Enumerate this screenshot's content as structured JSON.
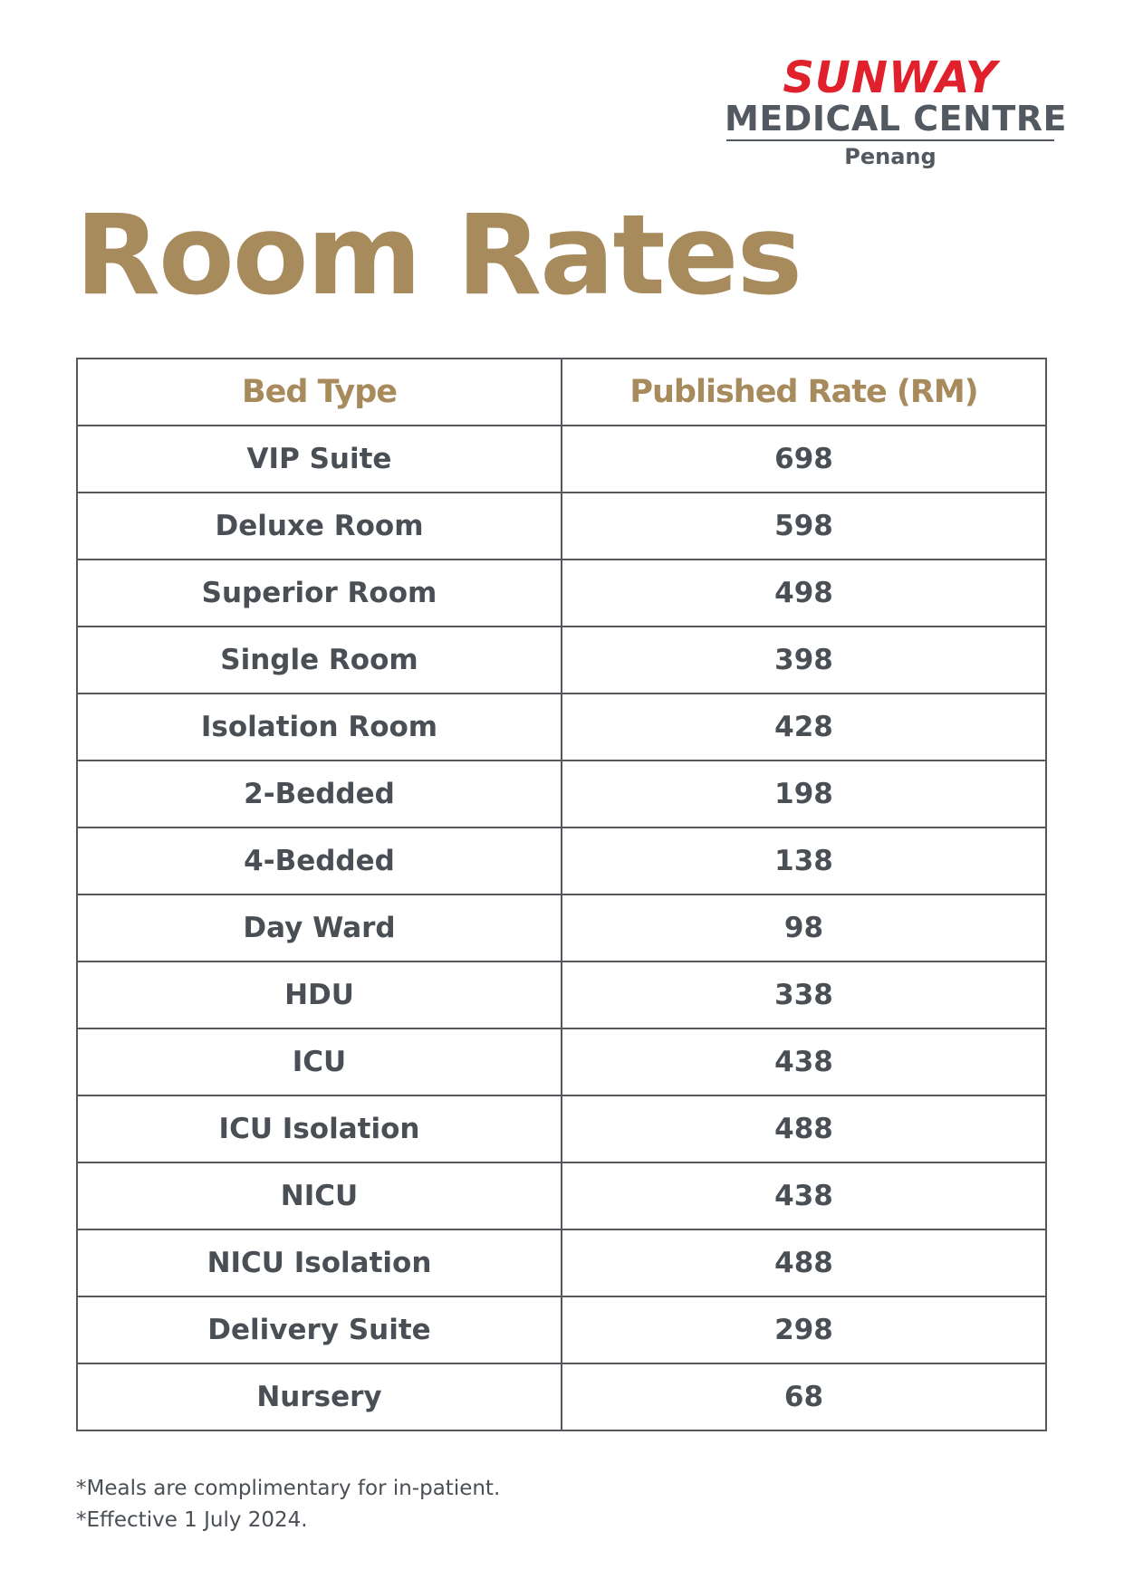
{
  "logo": {
    "brand": "SUNWAY",
    "name": "MEDICAL CENTRE",
    "location": "Penang",
    "brand_color": "#e0202b",
    "text_color": "#535960"
  },
  "title": "Room Rates",
  "accent_color": "#a78b5c",
  "table": {
    "headers": [
      "Bed Type",
      "Published Rate (RM)"
    ],
    "rows": [
      [
        "VIP Suite",
        "698"
      ],
      [
        "Deluxe Room",
        "598"
      ],
      [
        "Superior Room",
        "498"
      ],
      [
        "Single Room",
        "398"
      ],
      [
        "Isolation Room",
        "428"
      ],
      [
        "2-Bedded",
        "198"
      ],
      [
        "4-Bedded",
        "138"
      ],
      [
        "Day Ward",
        "98"
      ],
      [
        "HDU",
        "338"
      ],
      [
        "ICU",
        "438"
      ],
      [
        "ICU Isolation",
        "488"
      ],
      [
        "NICU",
        "438"
      ],
      [
        "NICU Isolation",
        "488"
      ],
      [
        "Delivery Suite",
        "298"
      ],
      [
        "Nursery",
        "68"
      ]
    ]
  },
  "footnotes": [
    "*Meals are complimentary for in-patient.",
    "*Effective 1 July 2024."
  ]
}
